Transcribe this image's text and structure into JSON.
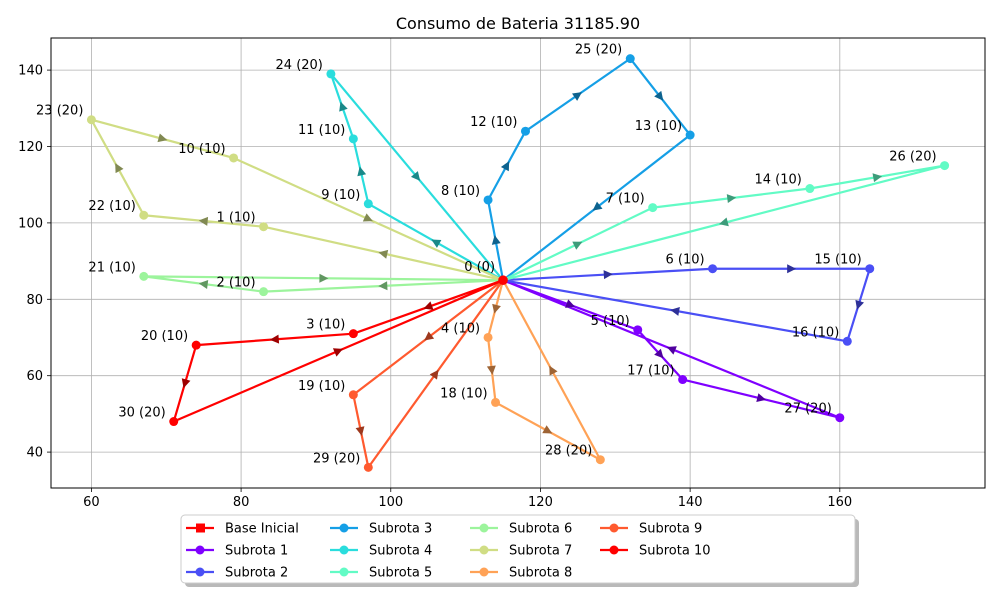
{
  "chart_data": {
    "type": "line",
    "title": "Consumo de Bateria 31185.90",
    "xlabel": "",
    "ylabel": "",
    "xlim": [
      54.6,
      179.4
    ],
    "ylim": [
      30.6,
      148.4
    ],
    "xticks": [
      60,
      80,
      100,
      120,
      140,
      160
    ],
    "yticks": [
      40,
      60,
      80,
      100,
      120,
      140
    ],
    "grid": true,
    "legend_position": "bottom-center",
    "depot": {
      "id": 0,
      "label": "0 (0)",
      "x": 115,
      "y": 85
    },
    "base": {
      "name": "Base Inicial",
      "color": "#ff0000"
    },
    "series": [
      {
        "name": "Subrota 1",
        "color": "#7f00ff",
        "points": [
          {
            "label": "0 (0)",
            "x": 115,
            "y": 85
          },
          {
            "label": "5 (10)",
            "x": 133,
            "y": 72
          },
          {
            "label": "17 (10)",
            "x": 139,
            "y": 59
          },
          {
            "label": "27 (20)",
            "x": 160,
            "y": 49
          },
          {
            "label": "0 (0)",
            "x": 115,
            "y": 85
          }
        ]
      },
      {
        "name": "Subrota 2",
        "color": "#4a4ff5",
        "points": [
          {
            "label": "0 (0)",
            "x": 115,
            "y": 85
          },
          {
            "label": "6 (10)",
            "x": 143,
            "y": 88
          },
          {
            "label": "15 (10)",
            "x": 164,
            "y": 88
          },
          {
            "label": "16 (10)",
            "x": 161,
            "y": 69
          },
          {
            "label": "0 (0)",
            "x": 115,
            "y": 85
          }
        ]
      },
      {
        "name": "Subrota 3",
        "color": "#159fe6",
        "points": [
          {
            "label": "0 (0)",
            "x": 115,
            "y": 85
          },
          {
            "label": "8 (10)",
            "x": 113,
            "y": 106
          },
          {
            "label": "12 (10)",
            "x": 118,
            "y": 124
          },
          {
            "label": "25 (20)",
            "x": 132,
            "y": 143
          },
          {
            "label": "13 (10)",
            "x": 140,
            "y": 123
          },
          {
            "label": "0 (0)",
            "x": 115,
            "y": 85
          }
        ]
      },
      {
        "name": "Subrota 4",
        "color": "#2adddd",
        "points": [
          {
            "label": "0 (0)",
            "x": 115,
            "y": 85
          },
          {
            "label": "9 (10)",
            "x": 97,
            "y": 105
          },
          {
            "label": "11 (10)",
            "x": 95,
            "y": 122
          },
          {
            "label": "24 (20)",
            "x": 92,
            "y": 139
          },
          {
            "label": "0 (0)",
            "x": 115,
            "y": 85
          }
        ]
      },
      {
        "name": "Subrota 5",
        "color": "#62fbc5",
        "points": [
          {
            "label": "0 (0)",
            "x": 115,
            "y": 85
          },
          {
            "label": "7 (10)",
            "x": 135,
            "y": 104
          },
          {
            "label": "14 (10)",
            "x": 156,
            "y": 109
          },
          {
            "label": "26 (20)",
            "x": 174,
            "y": 115
          },
          {
            "label": "0 (0)",
            "x": 115,
            "y": 85
          }
        ]
      },
      {
        "name": "Subrota 6",
        "color": "#9cf49c",
        "points": [
          {
            "label": "0 (0)",
            "x": 115,
            "y": 85
          },
          {
            "label": "2 (10)",
            "x": 83,
            "y": 82
          },
          {
            "label": "21 (10)",
            "x": 67,
            "y": 86
          },
          {
            "label": "0 (0)",
            "x": 115,
            "y": 85
          }
        ]
      },
      {
        "name": "Subrota 7",
        "color": "#d0dd84",
        "points": [
          {
            "label": "0 (0)",
            "x": 115,
            "y": 85
          },
          {
            "label": "1 (10)",
            "x": 83,
            "y": 99
          },
          {
            "label": "22 (10)",
            "x": 67,
            "y": 102
          },
          {
            "label": "23 (20)",
            "x": 60,
            "y": 127
          },
          {
            "label": "10 (10)",
            "x": 79,
            "y": 117
          },
          {
            "label": "0 (0)",
            "x": 115,
            "y": 85
          }
        ]
      },
      {
        "name": "Subrota 8",
        "color": "#ffa256",
        "points": [
          {
            "label": "0 (0)",
            "x": 115,
            "y": 85
          },
          {
            "label": "4 (10)",
            "x": 113,
            "y": 70
          },
          {
            "label": "18 (10)",
            "x": 114,
            "y": 53
          },
          {
            "label": "28 (20)",
            "x": 128,
            "y": 38
          },
          {
            "label": "0 (0)",
            "x": 115,
            "y": 85
          }
        ]
      },
      {
        "name": "Subrota 9",
        "color": "#ff5a2f",
        "points": [
          {
            "label": "0 (0)",
            "x": 115,
            "y": 85
          },
          {
            "label": "19 (10)",
            "x": 95,
            "y": 55
          },
          {
            "label": "29 (20)",
            "x": 97,
            "y": 36
          },
          {
            "label": "0 (0)",
            "x": 115,
            "y": 85
          }
        ]
      },
      {
        "name": "Subrota 10",
        "color": "#ff0000",
        "points": [
          {
            "label": "0 (0)",
            "x": 115,
            "y": 85
          },
          {
            "label": "3 (10)",
            "x": 95,
            "y": 71
          },
          {
            "label": "20 (10)",
            "x": 74,
            "y": 68
          },
          {
            "label": "30 (20)",
            "x": 71,
            "y": 48
          },
          {
            "label": "0 (0)",
            "x": 115,
            "y": 85
          }
        ]
      }
    ]
  }
}
